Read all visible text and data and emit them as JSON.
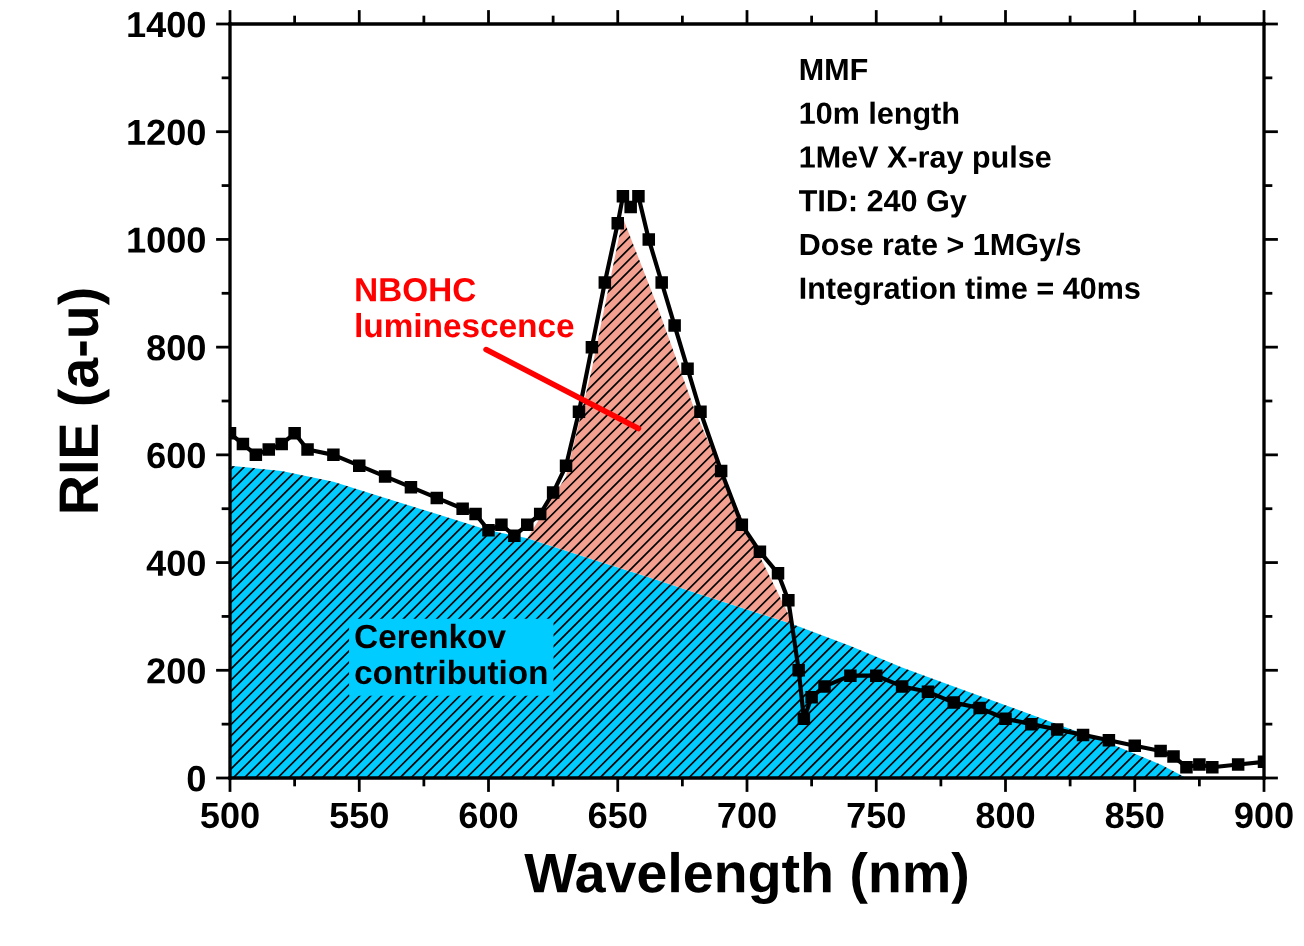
{
  "chart_data": {
    "type": "area",
    "stacked": true,
    "xlabel": "Wavelength (nm)",
    "ylabel": "RIE (a-u)",
    "x": [
      500,
      520,
      540,
      560,
      580,
      600,
      615,
      630,
      640,
      652,
      665,
      680,
      700,
      718,
      740,
      760,
      780,
      800,
      820,
      840,
      860,
      870,
      880,
      900
    ],
    "series": [
      {
        "name": "Cerenkov contribution",
        "color": "#00ccff",
        "values": [
          580,
          570,
          550,
          520,
          490,
          460,
          445,
          422,
          406,
          388,
          368,
          344,
          313,
          285,
          245,
          205,
          170,
          135,
          100,
          65,
          25,
          0,
          0,
          0
        ]
      },
      {
        "name": "NBOHC luminescence",
        "color": "#f4a090",
        "values": [
          0,
          0,
          0,
          0,
          0,
          0,
          0,
          138,
          354,
          652,
          512,
          336,
          147,
          0,
          0,
          0,
          0,
          0,
          0,
          0,
          0,
          0,
          0,
          0
        ]
      },
      {
        "type": "line",
        "color": "#000000",
        "marker": "square",
        "x": [
          500,
          505,
          510,
          515,
          520,
          525,
          530,
          540,
          550,
          560,
          570,
          580,
          590,
          595,
          600,
          605,
          610,
          615,
          620,
          625,
          630,
          635,
          640,
          645,
          650,
          652,
          655,
          658,
          662,
          667,
          672,
          677,
          682,
          690,
          698,
          705,
          712,
          716,
          720,
          722,
          725,
          730,
          740,
          750,
          760,
          770,
          780,
          790,
          800,
          810,
          820,
          830,
          840,
          850,
          860,
          865,
          870,
          875,
          880,
          890,
          900
        ],
        "values": [
          640,
          620,
          600,
          610,
          620,
          640,
          610,
          600,
          580,
          560,
          540,
          520,
          500,
          490,
          460,
          470,
          450,
          470,
          490,
          530,
          580,
          680,
          800,
          920,
          1030,
          1080,
          1060,
          1080,
          1000,
          920,
          840,
          760,
          680,
          570,
          470,
          420,
          380,
          330,
          200,
          110,
          150,
          170,
          190,
          190,
          170,
          160,
          140,
          130,
          110,
          100,
          90,
          80,
          70,
          60,
          50,
          40,
          20,
          25,
          20,
          25,
          30
        ]
      }
    ],
    "xlim": [
      500,
      900
    ],
    "xticks": [
      500,
      550,
      600,
      650,
      700,
      750,
      800,
      850,
      900
    ],
    "ylim": [
      0,
      1400
    ],
    "yticks": [
      0,
      200,
      400,
      600,
      800,
      1000,
      1200,
      1400
    ],
    "grid": false,
    "legend": false,
    "annotations": [
      "MMF",
      "10m length",
      "1MeV X-ray pulse",
      "TID: 240 Gy",
      "Dose rate > 1MGy/s",
      "Integration time = 40ms"
    ]
  }
}
